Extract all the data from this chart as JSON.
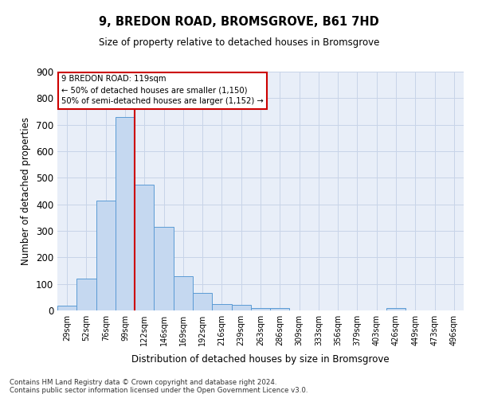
{
  "title": "9, BREDON ROAD, BROMSGROVE, B61 7HD",
  "subtitle": "Size of property relative to detached houses in Bromsgrove",
  "xlabel": "Distribution of detached houses by size in Bromsgrove",
  "ylabel": "Number of detached properties",
  "bar_color": "#c5d8f0",
  "bar_edge_color": "#5b9bd5",
  "grid_color": "#c8d4e8",
  "background_color": "#e8eef8",
  "vline_color": "#cc0000",
  "annotation_text": "9 BREDON ROAD: 119sqm\n← 50% of detached houses are smaller (1,150)\n50% of semi-detached houses are larger (1,152) →",
  "annotation_box_color": "#ffffff",
  "annotation_box_edge": "#cc0000",
  "ylim": [
    0,
    900
  ],
  "yticks": [
    0,
    100,
    200,
    300,
    400,
    500,
    600,
    700,
    800,
    900
  ],
  "footer": "Contains HM Land Registry data © Crown copyright and database right 2024.\nContains public sector information licensed under the Open Government Licence v3.0.",
  "all_bar_heights": [
    18,
    120,
    415,
    730,
    475,
    315,
    130,
    65,
    25,
    20,
    8,
    8,
    0,
    0,
    0,
    0,
    0,
    10,
    0,
    0,
    0
  ],
  "bar_labels": [
    "29sqm",
    "52sqm",
    "76sqm",
    "99sqm",
    "122sqm",
    "146sqm",
    "169sqm",
    "192sqm",
    "216sqm",
    "239sqm",
    "263sqm",
    "286sqm",
    "309sqm",
    "333sqm",
    "356sqm",
    "379sqm",
    "403sqm",
    "426sqm",
    "449sqm",
    "473sqm",
    "496sqm"
  ],
  "n_bars": 21,
  "vline_pos": 3.5
}
